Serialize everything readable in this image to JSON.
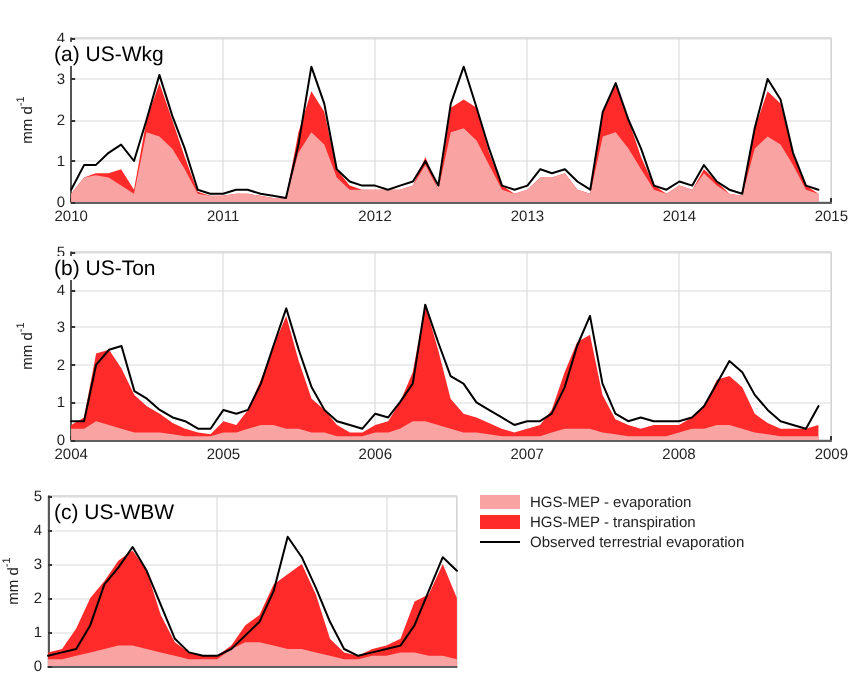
{
  "chart_data": [
    {
      "type": "area",
      "title": "(a) US-Wkg",
      "ylabel": "mm d$^{-1}$",
      "stacked": true,
      "grid": true,
      "line_style": "solid",
      "marker": "none",
      "x": [
        "2010-01",
        "2010-02",
        "2010-03",
        "2010-04",
        "2010-05",
        "2010-06",
        "2010-07",
        "2010-08",
        "2010-09",
        "2010-10",
        "2010-11",
        "2010-12",
        "2011-01",
        "2011-02",
        "2011-03",
        "2011-04",
        "2011-05",
        "2011-06",
        "2011-07",
        "2011-08",
        "2011-09",
        "2011-10",
        "2011-11",
        "2011-12",
        "2012-01",
        "2012-02",
        "2012-03",
        "2012-04",
        "2012-05",
        "2012-06",
        "2012-07",
        "2012-08",
        "2012-09",
        "2012-10",
        "2012-11",
        "2012-12",
        "2013-01",
        "2013-02",
        "2013-03",
        "2013-04",
        "2013-05",
        "2013-06",
        "2013-07",
        "2013-08",
        "2013-09",
        "2013-10",
        "2013-11",
        "2013-12",
        "2014-01",
        "2014-02",
        "2014-03",
        "2014-04",
        "2014-05",
        "2014-06",
        "2014-07",
        "2014-08",
        "2014-09",
        "2014-10",
        "2014-11",
        "2014-12"
      ],
      "xlim": [
        "2010",
        "2015"
      ],
      "xticks": [
        {
          "value": "2010",
          "label": "2010"
        },
        {
          "value": "2011",
          "label": "2011"
        },
        {
          "value": "2012",
          "label": "2012"
        },
        {
          "value": "2013",
          "label": "2013"
        },
        {
          "value": "2014",
          "label": "2014"
        },
        {
          "value": "2015",
          "label": "2015"
        }
      ],
      "ylim": [
        0,
        4
      ],
      "yticks": [
        0,
        1,
        2,
        3,
        4
      ],
      "series": [
        {
          "color": "#f9a3a3",
          "values": [
            0.2,
            0.6,
            0.65,
            0.6,
            0.4,
            0.2,
            1.7,
            1.6,
            1.3,
            0.8,
            0.2,
            0.15,
            0.15,
            0.2,
            0.2,
            0.15,
            0.1,
            0.1,
            1.2,
            1.7,
            1.4,
            0.6,
            0.3,
            0.3,
            0.3,
            0.3,
            0.3,
            0.4,
            0.9,
            0.3,
            1.7,
            1.8,
            1.5,
            0.9,
            0.3,
            0.2,
            0.3,
            0.6,
            0.6,
            0.7,
            0.3,
            0.2,
            1.6,
            1.7,
            1.3,
            0.8,
            0.3,
            0.2,
            0.4,
            0.3,
            0.7,
            0.4,
            0.2,
            0.15,
            1.3,
            1.6,
            1.4,
            0.9,
            0.3,
            0.2
          ]
        },
        {
          "color": "#ff2a2a",
          "values": [
            0,
            0,
            0.05,
            0.1,
            0.4,
            0.1,
            0.3,
            1.3,
            0.7,
            0.3,
            0.05,
            0,
            0,
            0,
            0,
            0,
            0,
            0,
            0.5,
            1.0,
            0.8,
            0.2,
            0.1,
            0,
            0,
            0,
            0,
            0,
            0.2,
            0,
            0.6,
            0.7,
            0.8,
            0.3,
            0.1,
            0,
            0,
            0,
            0,
            0,
            0,
            0,
            0.6,
            1.2,
            0.7,
            0.3,
            0.1,
            0,
            0,
            0,
            0.1,
            0.1,
            0,
            0,
            0.5,
            1.1,
            1.0,
            0.3,
            0.1,
            0
          ]
        },
        {
          "type": "line",
          "color": "#000000",
          "values": [
            0.3,
            0.9,
            0.9,
            1.2,
            1.4,
            1.0,
            2.0,
            3.1,
            2.1,
            1.3,
            0.3,
            0.2,
            0.2,
            0.3,
            0.3,
            0.2,
            0.15,
            0.1,
            1.4,
            3.3,
            2.4,
            0.8,
            0.5,
            0.4,
            0.4,
            0.3,
            0.4,
            0.5,
            1.0,
            0.4,
            2.4,
            3.3,
            2.3,
            1.3,
            0.4,
            0.3,
            0.4,
            0.8,
            0.7,
            0.8,
            0.5,
            0.3,
            2.2,
            2.9,
            2.0,
            1.3,
            0.4,
            0.3,
            0.5,
            0.4,
            0.9,
            0.5,
            0.3,
            0.2,
            1.8,
            3.0,
            2.5,
            1.2,
            0.4,
            0.3
          ]
        }
      ]
    },
    {
      "type": "area",
      "title": "(b) US-Ton",
      "ylabel": "mm d$^{-1}$",
      "stacked": true,
      "grid": true,
      "line_style": "solid",
      "marker": "none",
      "x": [
        "2004-01",
        "2004-02",
        "2004-03",
        "2004-04",
        "2004-05",
        "2004-06",
        "2004-07",
        "2004-08",
        "2004-09",
        "2004-10",
        "2004-11",
        "2004-12",
        "2005-01",
        "2005-02",
        "2005-03",
        "2005-04",
        "2005-05",
        "2005-06",
        "2005-07",
        "2005-08",
        "2005-09",
        "2005-10",
        "2005-11",
        "2005-12",
        "2006-01",
        "2006-02",
        "2006-03",
        "2006-04",
        "2006-05",
        "2006-06",
        "2006-07",
        "2006-08",
        "2006-09",
        "2006-10",
        "2006-11",
        "2006-12",
        "2007-01",
        "2007-02",
        "2007-03",
        "2007-04",
        "2007-05",
        "2007-06",
        "2007-07",
        "2007-08",
        "2007-09",
        "2007-10",
        "2007-11",
        "2007-12",
        "2008-01",
        "2008-02",
        "2008-03",
        "2008-04",
        "2008-05",
        "2008-06",
        "2008-07",
        "2008-08",
        "2008-09",
        "2008-10",
        "2008-11",
        "2008-12"
      ],
      "xlim": [
        "2004",
        "2009"
      ],
      "xticks": [
        {
          "value": "2004",
          "label": "2004"
        },
        {
          "value": "2005",
          "label": "2005"
        },
        {
          "value": "2006",
          "label": "2006"
        },
        {
          "value": "2007",
          "label": "2007"
        },
        {
          "value": "2008",
          "label": "2008"
        },
        {
          "value": "2009",
          "label": "2009"
        }
      ],
      "ylim": [
        0,
        5
      ],
      "yticks": [
        0,
        1,
        2,
        3,
        4,
        5
      ],
      "series": [
        {
          "color": "#f9a3a3",
          "values": [
            0.3,
            0.3,
            0.5,
            0.4,
            0.3,
            0.2,
            0.2,
            0.2,
            0.15,
            0.1,
            0.1,
            0.1,
            0.2,
            0.2,
            0.3,
            0.4,
            0.4,
            0.3,
            0.3,
            0.2,
            0.2,
            0.1,
            0.1,
            0.1,
            0.2,
            0.2,
            0.3,
            0.5,
            0.5,
            0.4,
            0.3,
            0.2,
            0.2,
            0.15,
            0.1,
            0.1,
            0.1,
            0.1,
            0.2,
            0.3,
            0.3,
            0.3,
            0.2,
            0.15,
            0.1,
            0.1,
            0.1,
            0.1,
            0.2,
            0.3,
            0.3,
            0.4,
            0.4,
            0.3,
            0.2,
            0.15,
            0.1,
            0.1,
            0.1,
            0.1
          ]
        },
        {
          "color": "#ff2a2a",
          "values": [
            0.1,
            0.3,
            1.8,
            2.0,
            1.6,
            1.0,
            0.7,
            0.5,
            0.3,
            0.2,
            0.1,
            0.05,
            0.3,
            0.2,
            0.5,
            1.2,
            2.1,
            3.0,
            1.8,
            0.9,
            0.6,
            0.3,
            0.1,
            0.1,
            0.2,
            0.3,
            0.7,
            1.3,
            3.1,
            2.0,
            0.8,
            0.5,
            0.4,
            0.3,
            0.2,
            0.1,
            0.2,
            0.3,
            0.6,
            1.5,
            2.3,
            2.5,
            1.0,
            0.4,
            0.3,
            0.2,
            0.3,
            0.3,
            0.2,
            0.3,
            0.6,
            1.2,
            1.3,
            1.1,
            0.5,
            0.3,
            0.2,
            0.2,
            0.2,
            0.3
          ]
        },
        {
          "type": "line",
          "color": "#000000",
          "values": [
            0.5,
            0.5,
            2.0,
            2.4,
            2.5,
            1.3,
            1.1,
            0.8,
            0.6,
            0.5,
            0.3,
            0.3,
            0.8,
            0.7,
            0.8,
            1.5,
            2.5,
            3.5,
            2.4,
            1.4,
            0.8,
            0.5,
            0.4,
            0.3,
            0.7,
            0.6,
            1.0,
            1.5,
            3.6,
            2.6,
            1.7,
            1.5,
            1.0,
            0.8,
            0.6,
            0.4,
            0.5,
            0.5,
            0.7,
            1.4,
            2.5,
            3.3,
            1.5,
            0.7,
            0.5,
            0.6,
            0.5,
            0.5,
            0.5,
            0.6,
            0.9,
            1.5,
            2.1,
            1.8,
            1.2,
            0.8,
            0.5,
            0.4,
            0.3,
            0.9
          ]
        }
      ]
    },
    {
      "type": "area",
      "title": "(c) US-WBW",
      "ylabel": "mm d$^{-1}$",
      "stacked": true,
      "grid": true,
      "line_style": "solid",
      "marker": "none",
      "legend": "right",
      "tick_labels": "y",
      "categories": [
        null,
        null,
        null,
        null,
        null,
        null,
        null,
        null,
        null,
        null,
        null,
        null,
        null,
        null,
        null,
        null,
        null,
        null,
        null,
        null,
        null,
        null,
        null,
        null,
        null,
        null,
        null,
        null,
        null,
        null
      ],
      "ylim": [
        0,
        5
      ],
      "yticks": [
        0,
        1,
        2,
        3,
        4,
        5
      ],
      "series": [
        {
          "name": "HGS-MEP - evaporation",
          "color": "#f9a3a3",
          "values": [
            0.2,
            0.2,
            0.3,
            0.4,
            0.5,
            0.6,
            0.6,
            0.5,
            0.4,
            0.3,
            0.2,
            0.2,
            0.2,
            0.5,
            0.7,
            0.7,
            0.6,
            0.5,
            0.5,
            0.4,
            0.3,
            0.2,
            0.2,
            0.3,
            0.3,
            0.4,
            0.4,
            0.3,
            0.3,
            0.2
          ]
        },
        {
          "name": "HGS-MEP - transpiration",
          "color": "#ff2a2a",
          "values": [
            0.2,
            0.3,
            0.8,
            1.6,
            2.0,
            2.5,
            2.8,
            2.3,
            1.1,
            0.4,
            0.2,
            0.1,
            0.1,
            0.1,
            0.5,
            0.8,
            1.8,
            2.2,
            2.5,
            1.7,
            0.5,
            0.2,
            0.1,
            0.2,
            0.3,
            0.4,
            1.5,
            1.8,
            2.7,
            1.8
          ]
        },
        {
          "type": "line",
          "name": "Observed terrestrial evaporation",
          "color": "#000000",
          "values": [
            0.3,
            0.4,
            0.5,
            1.2,
            2.4,
            2.9,
            3.5,
            2.8,
            1.8,
            0.8,
            0.4,
            0.3,
            0.3,
            0.5,
            0.9,
            1.3,
            2.2,
            3.8,
            3.2,
            2.3,
            1.3,
            0.5,
            0.3,
            0.4,
            0.5,
            0.6,
            1.2,
            2.2,
            3.2,
            2.8
          ]
        }
      ]
    }
  ]
}
